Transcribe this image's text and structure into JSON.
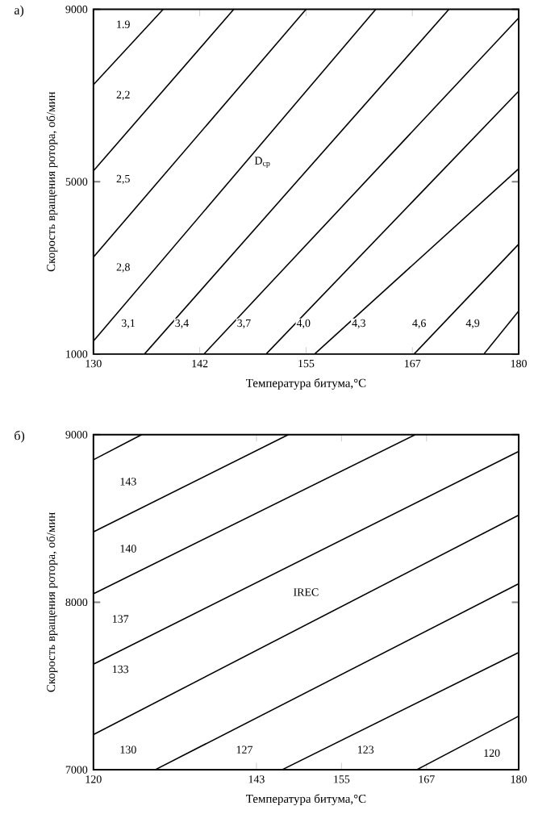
{
  "chart_data": [
    {
      "type": "line",
      "title": "а)",
      "xlabel": "Температура битума,°С",
      "ylabel": "Скорость вращения ротора, об/мин",
      "xlim": [
        130,
        180
      ],
      "ylim": [
        1000,
        9000
      ],
      "xticks": [
        130,
        {
          "value": 142.5,
          "label": "142"
        },
        155,
        {
          "value": 167.5,
          "label": "167"
        },
        180
      ],
      "yticks": [
        1000,
        5000,
        9000
      ],
      "series": [
        {
          "color": "#000000",
          "x": [
            130,
            138.2
          ],
          "values": [
            7250,
            9000
          ]
        },
        {
          "color": "#000000",
          "x": [
            130,
            146.5
          ],
          "values": [
            5250,
            9000
          ]
        },
        {
          "color": "#000000",
          "x": [
            130,
            155.0
          ],
          "values": [
            3250,
            9000
          ]
        },
        {
          "color": "#000000",
          "x": [
            130,
            163.2
          ],
          "values": [
            1300,
            9000
          ]
        },
        {
          "color": "#000000",
          "x": [
            136.0,
            171.8
          ],
          "values": [
            1000,
            9000
          ]
        },
        {
          "color": "#000000",
          "x": [
            143.0,
            180
          ],
          "values": [
            1000,
            8800
          ]
        },
        {
          "color": "#000000",
          "x": [
            150.3,
            180
          ],
          "values": [
            1000,
            7100
          ]
        },
        {
          "color": "#000000",
          "x": [
            156.0,
            180
          ],
          "values": [
            1000,
            5300
          ]
        },
        {
          "color": "#000000",
          "x": [
            167.7,
            180
          ],
          "values": [
            1000,
            3550
          ]
        },
        {
          "color": "#000000",
          "x": [
            175.9,
            180
          ],
          "values": [
            1000,
            2000
          ]
        }
      ],
      "annotations": [
        {
          "text": "1.9",
          "x": 133.5,
          "y": 8650
        },
        {
          "text": "2,2",
          "x": 133.5,
          "y": 7000
        },
        {
          "text": "2,5",
          "x": 133.5,
          "y": 5050
        },
        {
          "text": "2,8",
          "x": 133.5,
          "y": 3000
        },
        {
          "text": "3,1",
          "x": 134.1,
          "y": 1700
        },
        {
          "text": "3,4",
          "x": 140.4,
          "y": 1700
        },
        {
          "text": "3,7",
          "x": 147.7,
          "y": 1700
        },
        {
          "text": "4,0",
          "x": 154.7,
          "y": 1700
        },
        {
          "text": "4,3",
          "x": 161.2,
          "y": 1700
        },
        {
          "text": "4,6",
          "x": 168.3,
          "y": 1700
        },
        {
          "text": "4,9",
          "x": 174.6,
          "y": 1700
        },
        {
          "text": "D$_{ср}$",
          "x": 149.9,
          "y": 5450
        }
      ]
    },
    {
      "type": "line",
      "title": "б)",
      "xlabel": "Температура битума,°С",
      "ylabel": "Скорость вращения ротора, об/мин",
      "xlim": [
        120,
        180
      ],
      "ylim": [
        7000,
        9000
      ],
      "xticks": [
        120,
        143,
        155,
        167,
        180
      ],
      "yticks": [
        7000,
        8000,
        9000
      ],
      "series": [
        {
          "color": "#000000",
          "x": [
            120,
            126.8
          ],
          "values": [
            8850,
            9000
          ]
        },
        {
          "color": "#000000",
          "x": [
            120,
            147.5
          ],
          "values": [
            8420,
            9000
          ]
        },
        {
          "color": "#000000",
          "x": [
            120,
            165.4
          ],
          "values": [
            8050,
            9000
          ]
        },
        {
          "color": "#000000",
          "x": [
            120,
            180
          ],
          "values": [
            7630,
            8900
          ]
        },
        {
          "color": "#000000",
          "x": [
            120,
            180
          ],
          "values": [
            7210,
            8520
          ]
        },
        {
          "color": "#000000",
          "x": [
            128.7,
            180
          ],
          "values": [
            7000,
            8110
          ]
        },
        {
          "color": "#000000",
          "x": [
            146.6,
            180
          ],
          "values": [
            7000,
            7700
          ]
        },
        {
          "color": "#000000",
          "x": [
            165.6,
            180
          ],
          "values": [
            7000,
            7320
          ]
        }
      ],
      "annotations": [
        {
          "text": "143",
          "x": 124.9,
          "y": 8720
        },
        {
          "text": "140",
          "x": 124.9,
          "y": 8320
        },
        {
          "text": "137",
          "x": 123.8,
          "y": 7900
        },
        {
          "text": "133",
          "x": 123.8,
          "y": 7600
        },
        {
          "text": "130",
          "x": 124.9,
          "y": 7120
        },
        {
          "text": "127",
          "x": 141.3,
          "y": 7120
        },
        {
          "text": "123",
          "x": 158.4,
          "y": 7120
        },
        {
          "text": "120",
          "x": 176.2,
          "y": 7100
        },
        {
          "text": "IREC",
          "x": 150.0,
          "y": 8060
        }
      ]
    }
  ]
}
